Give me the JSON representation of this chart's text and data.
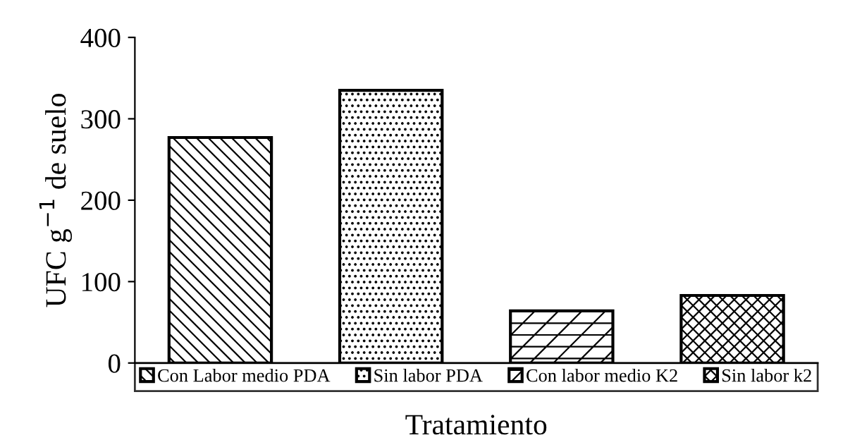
{
  "chart_data": {
    "type": "bar",
    "xlabel": "Tratamiento",
    "ylabel": "UFC g$^{−1}$ de suelo",
    "categories": [
      null,
      null,
      null,
      null
    ],
    "series": [
      {
        "name": "Con Labor medio PDA",
        "color": "#000000",
        "values": [
          277,
          null,
          null,
          null
        ]
      },
      {
        "name": "Sin labor PDA",
        "color": "#000000",
        "values": [
          null,
          335,
          null,
          null
        ]
      },
      {
        "name": "Con labor medio K2",
        "color": "#000000",
        "values": [
          null,
          null,
          64,
          null
        ]
      },
      {
        "name": "Sin labor k2",
        "color": "#000000",
        "values": [
          null,
          null,
          null,
          83
        ]
      }
    ],
    "ylim": [
      0,
      400
    ],
    "yticks": [
      0,
      100,
      200,
      300,
      400
    ],
    "grid": false,
    "legend": "bottom",
    "tick_labels": "y"
  }
}
